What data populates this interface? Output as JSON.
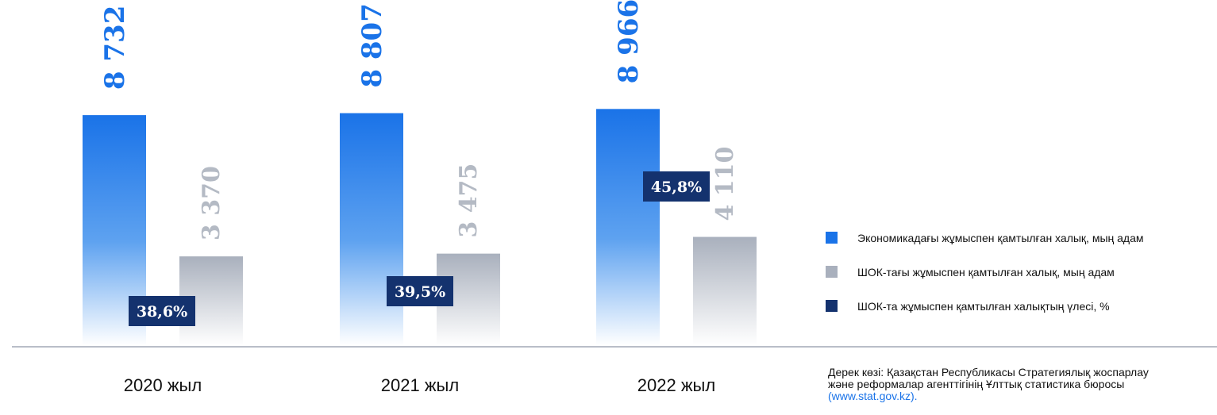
{
  "chart_data": {
    "type": "bar",
    "categories": [
      "2020 жыл",
      "2021 жыл",
      "2022 жыл"
    ],
    "series": [
      {
        "name": "Экономикадағы жұмыспен қамтылған халық, мың адам",
        "values": [
          8732,
          8807,
          8966
        ],
        "labels": [
          "8 732",
          "8 807",
          "8 966"
        ],
        "color": "#1a73e8"
      },
      {
        "name": "ШОК-тағы жұмыспен қамтылған халық, мың адам",
        "values": [
          3370,
          3475,
          4110
        ],
        "labels": [
          "3 370",
          "3 475",
          "4 110"
        ],
        "color": "#a9b0bd"
      },
      {
        "name": "ШОК-та жұмыспен қамтылған халықтың үлесі, %",
        "values": [
          38.6,
          39.5,
          45.8
        ],
        "labels": [
          "38,6%",
          "39,5%",
          "45,8%"
        ],
        "color": "#14326e"
      }
    ],
    "ylim": [
      0,
      11000
    ],
    "grid": false
  },
  "source": {
    "line1": "Дерек көзі: Қазақстан Республикасы Стратегиялық жоспарлау",
    "line2": "және реформалар агенттігінің Ұлттық статистика бюросы",
    "link": "(www.stat.gov.kz)."
  }
}
